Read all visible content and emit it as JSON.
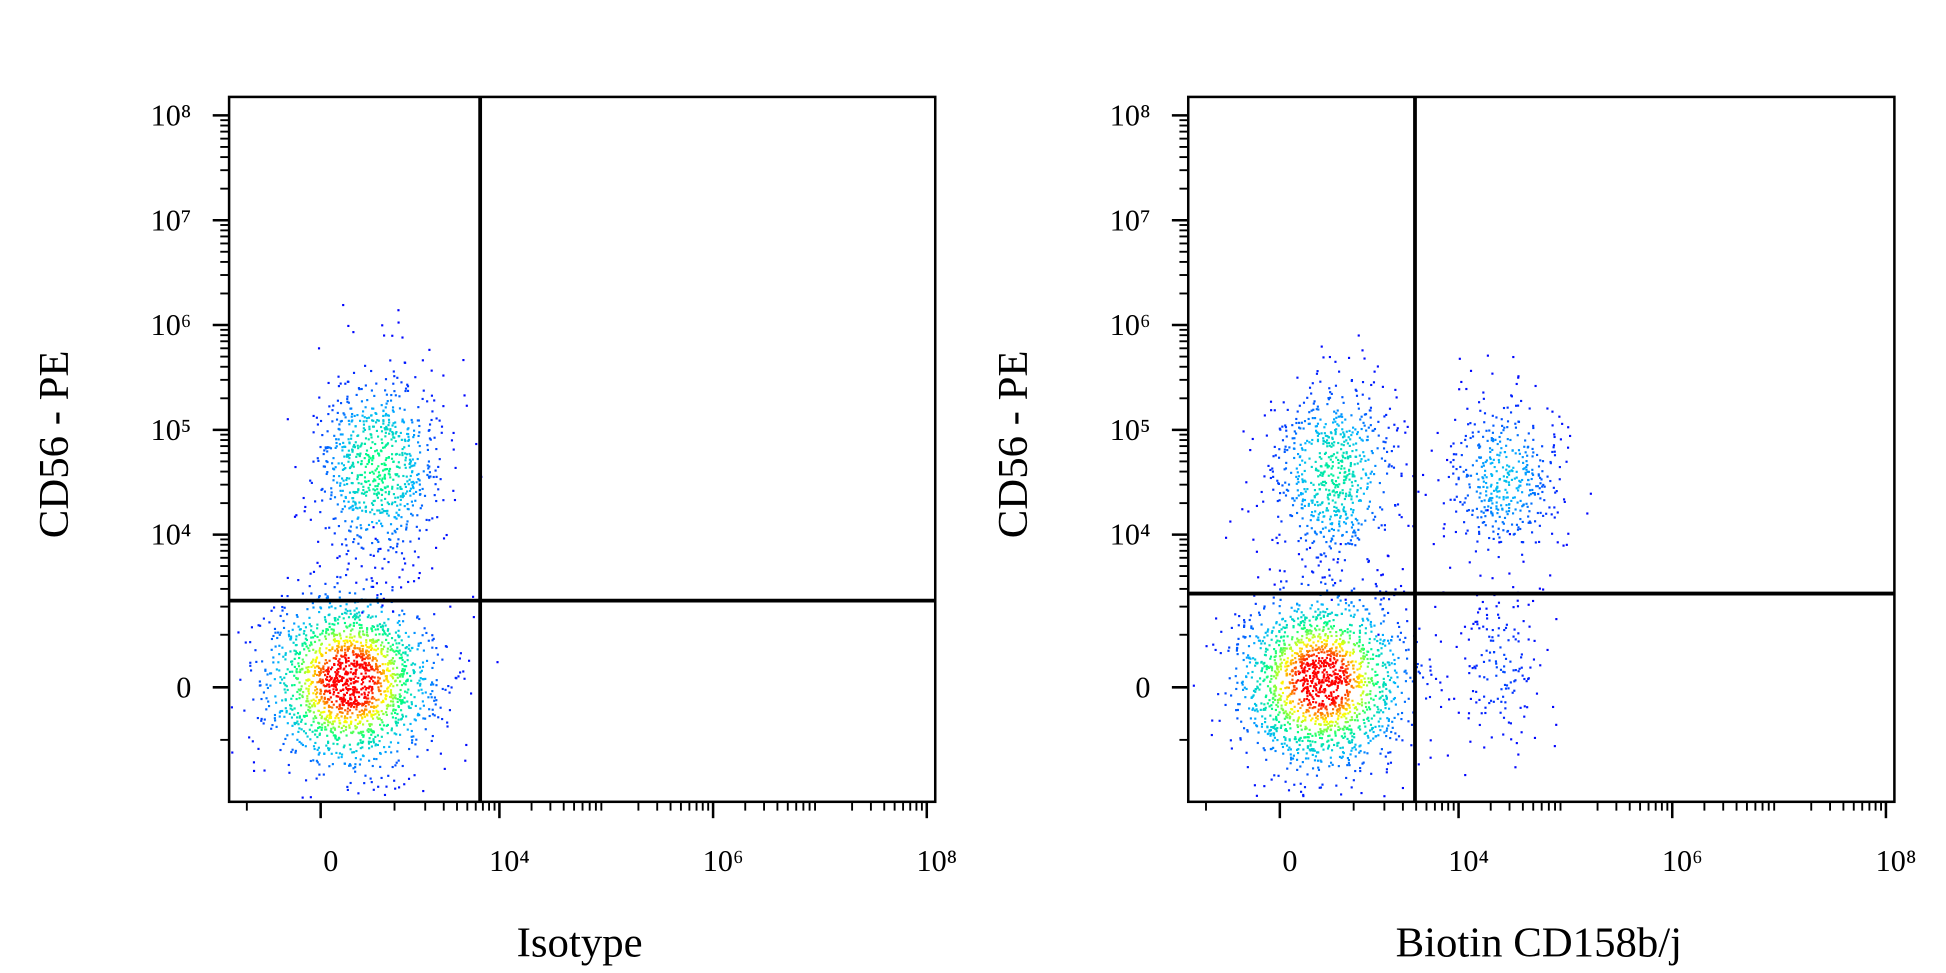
{
  "chart_data": [
    {
      "type": "scatter",
      "scale": "biexponential",
      "xlabel": "Isotype",
      "ylabel": "CD56 - PE",
      "xlim": [
        -1500,
        120000000
      ],
      "ylim": [
        -4300,
        150000000
      ],
      "xticks": [
        0,
        {
          "value": 10000,
          "label": "10⁴"
        },
        {
          "value": 1000000,
          "label": "10⁶"
        },
        {
          "value": 100000000,
          "label": "10⁸"
        }
      ],
      "yticks": [
        0,
        {
          "value": 10000,
          "label": "10⁴"
        },
        {
          "value": 100000,
          "label": "10⁵"
        },
        {
          "value": 1000000,
          "label": "10⁶"
        },
        {
          "value": 10000000,
          "label": "10⁷"
        },
        {
          "value": 100000000,
          "label": "10⁸"
        }
      ],
      "gates": {
        "x": 6600,
        "y": 2300
      },
      "colormap": [
        "#0000ff",
        "#00b4ff",
        "#00ff80",
        "#ffff00",
        "#ff0000"
      ],
      "populations": [
        {
          "x": 270,
          "y": 115,
          "sd_x": 0.4,
          "sd_y": 0.42,
          "n": 1800
        },
        {
          "x": 640,
          "y": 46000,
          "sd_x": 0.3,
          "sd_y": 0.45,
          "n": 800
        }
      ]
    },
    {
      "type": "scatter",
      "scale": "biexponential",
      "xlabel": "Biotin CD158b/j",
      "ylabel": "CD56 - PE",
      "xlim": [
        -1500,
        120000000
      ],
      "ylim": [
        -4300,
        150000000
      ],
      "xticks": [
        0,
        {
          "value": 10000,
          "label": "10⁴"
        },
        {
          "value": 1000000,
          "label": "10⁶"
        },
        {
          "value": 100000000,
          "label": "10⁸"
        }
      ],
      "yticks": [
        0,
        {
          "value": 10000,
          "label": "10⁴"
        },
        {
          "value": 100000,
          "label": "10⁵"
        },
        {
          "value": 1000000,
          "label": "10⁶"
        },
        {
          "value": 10000000,
          "label": "10⁷"
        },
        {
          "value": 100000000,
          "label": "10⁸"
        }
      ],
      "gates": {
        "x": 3900,
        "y": 2700
      },
      "colormap": [
        "#0000ff",
        "#00b4ff",
        "#00ff80",
        "#ffff00",
        "#ff0000"
      ],
      "populations": [
        {
          "x": 420,
          "y": 115,
          "sd_x": 0.4,
          "sd_y": 0.42,
          "n": 1800
        },
        {
          "x": 600,
          "y": 40000,
          "sd_x": 0.3,
          "sd_y": 0.45,
          "n": 700
        },
        {
          "x": 26000,
          "y": 36000,
          "sd_x": 0.28,
          "sd_y": 0.4,
          "n": 450
        },
        {
          "x": 24000,
          "y": 320,
          "sd_x": 0.2,
          "sd_y": 0.4,
          "n": 160
        }
      ]
    }
  ]
}
